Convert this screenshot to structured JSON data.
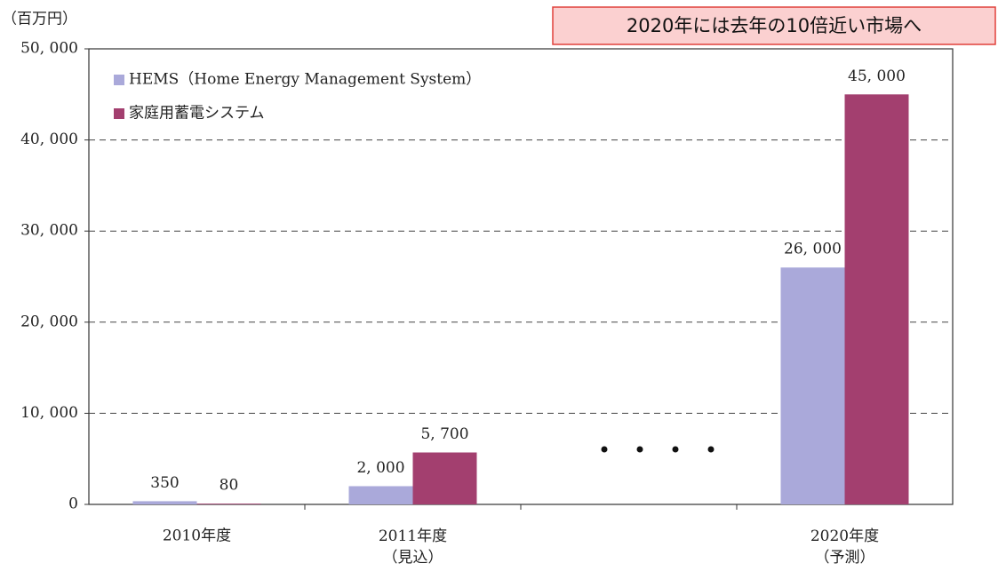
{
  "chart_data": {
    "type": "bar",
    "unit_label": "（百万円）",
    "annotation": "2020年には去年の10倍近い市場へ",
    "categories": [
      "2010年度",
      "2011年度\n（見込）",
      null,
      "2020年度\n（予測）"
    ],
    "series": [
      {
        "name": "HEMS（Home Energy Management System）",
        "color": "#aaa9da",
        "values": [
          350,
          2000,
          null,
          26000
        ],
        "value_labels": [
          "350",
          "2, 000",
          null,
          "26, 000"
        ]
      },
      {
        "name": "家庭用蓄電システム",
        "color": "#a33f6f",
        "values": [
          80,
          5700,
          null,
          45000
        ],
        "value_labels": [
          "80",
          "5, 700",
          null,
          "45, 000"
        ]
      }
    ],
    "ylim": [
      0,
      50000
    ],
    "yticks": [
      0,
      {
        "value": 10000,
        "label": "10, 000"
      },
      {
        "value": 20000,
        "label": "20, 000"
      },
      {
        "value": 30000,
        "label": "30, 000"
      },
      {
        "value": 40000,
        "label": "40, 000"
      },
      {
        "value": 50000,
        "label": "50, 000"
      }
    ],
    "grid": true
  }
}
